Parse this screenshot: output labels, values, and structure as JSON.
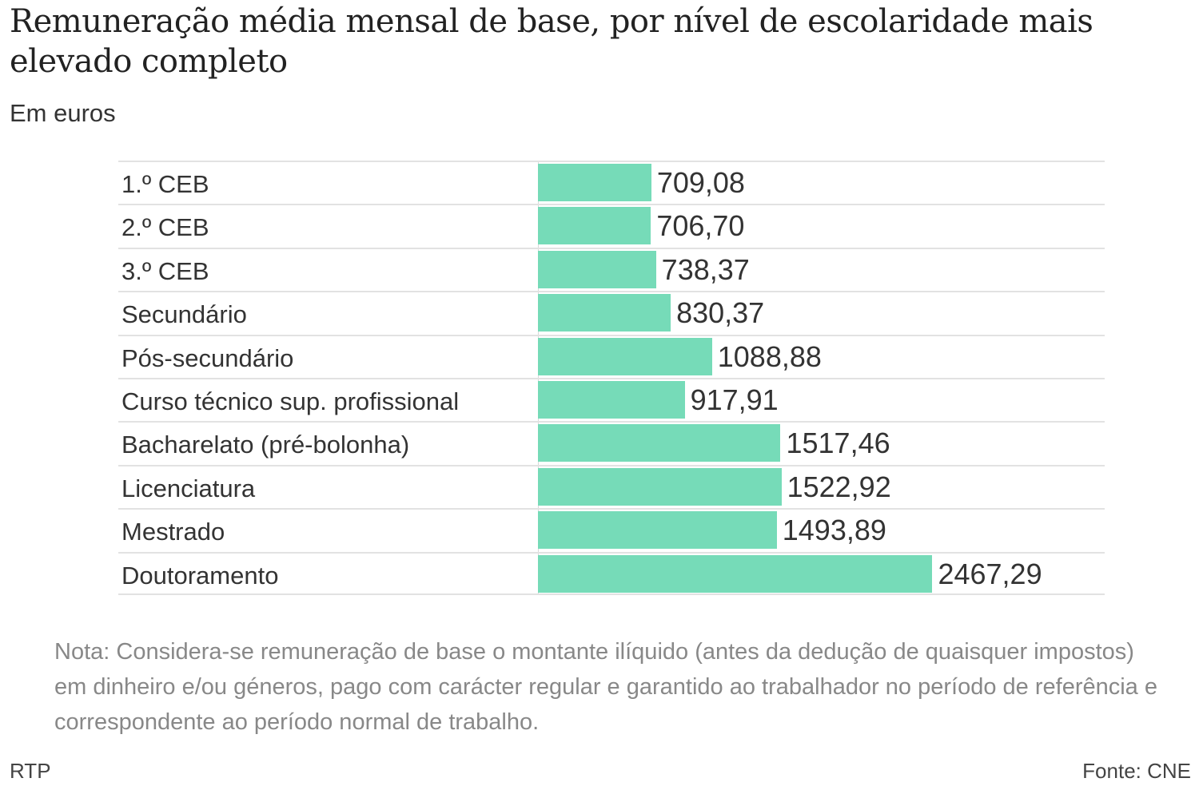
{
  "header": {
    "title": "Remuneração média mensal de base, por nível de escolaridade mais elevado completo",
    "subtitle": "Em euros"
  },
  "chart_data": {
    "type": "bar",
    "orientation": "horizontal",
    "title": "Remuneração média mensal de base, por nível de escolaridade mais elevado completo",
    "subtitle": "Em euros",
    "xlabel": "",
    "ylabel": "",
    "xlim": [
      0,
      2500
    ],
    "grid": false,
    "bar_color": "#76dbb8",
    "categories": [
      "1.º CEB",
      "2.º CEB",
      "3.º CEB",
      "Secundário",
      "Pós-secundário",
      "Curso técnico sup. profissional",
      "Bacharelato (pré-bolonha)",
      "Licenciatura",
      "Mestrado",
      "Doutoramento"
    ],
    "values": [
      709.08,
      706.7,
      738.37,
      830.37,
      1088.88,
      917.91,
      1517.46,
      1522.92,
      1493.89,
      2467.29
    ],
    "value_labels": [
      "709,08",
      "706,70",
      "738,37",
      "830,37",
      "1088,88",
      "917,91",
      "1517,46",
      "1522,92",
      "1493,89",
      "2467,29"
    ]
  },
  "footer": {
    "note": "Nota: Considera-se remuneração de base o montante ilíquido (antes da dedução de quaisquer impostos) em dinheiro e/ou géneros, pago com carácter regular e garantido ao trabalhador no período de referência e correspondente ao período normal de trabalho.",
    "credit": "RTP",
    "source": "Fonte: CNE"
  }
}
